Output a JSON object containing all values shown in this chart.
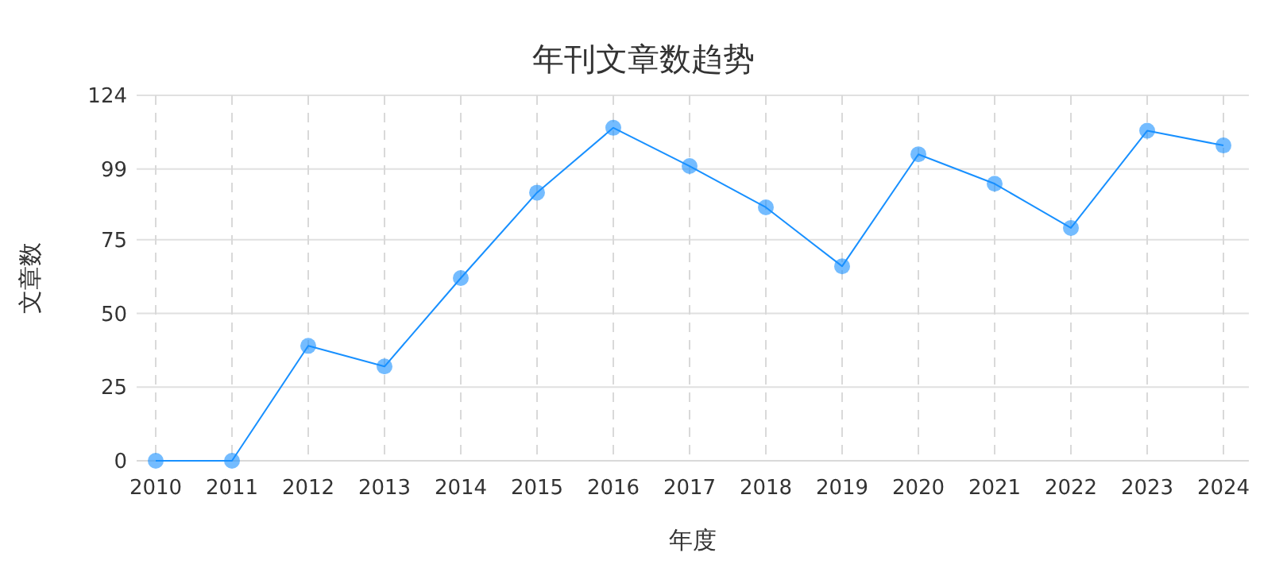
{
  "chart_data": {
    "type": "line",
    "title": "年刊文章数趋势",
    "xlabel": "年度",
    "ylabel": "文章数",
    "categories": [
      "2010",
      "2011",
      "2012",
      "2013",
      "2014",
      "2015",
      "2016",
      "2017",
      "2018",
      "2019",
      "2020",
      "2021",
      "2022",
      "2023",
      "2024"
    ],
    "series": [
      {
        "color": "#1890ff",
        "values": [
          0,
          0,
          39,
          32,
          62,
          91,
          113,
          100,
          86,
          66,
          104,
          94,
          79,
          112,
          107
        ]
      }
    ],
    "ylim": [
      0,
      124
    ],
    "yticks": [
      0,
      25,
      50,
      75,
      99,
      124
    ],
    "grid": true,
    "marker": "circle",
    "line_style": "solid"
  }
}
